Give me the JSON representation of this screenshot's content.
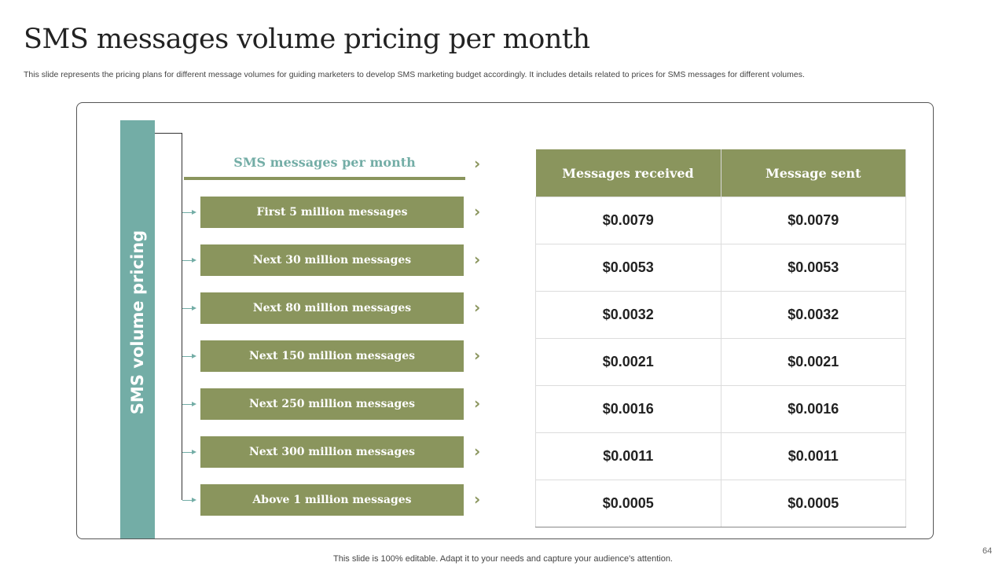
{
  "title": "SMS messages volume pricing per month",
  "subtitle": "This slide represents the pricing plans for different message volumes for guiding marketers to develop SMS  marketing budget accordingly. It includes details related to prices for SMS  messages for different volumes.",
  "side_label": "SMS volume pricing",
  "tiers_header": "SMS messages per month",
  "tiers": [
    "First 5 million messages",
    "Next 30 million messages",
    "Next 80  million messages",
    "Next 150 million messages",
    "Next 250 million messages",
    "Next 300  million messages",
    "Above   1 million messages"
  ],
  "table": {
    "headers": [
      "Messages received",
      "Message sent"
    ],
    "rows": [
      [
        "$0.0079",
        "$0.0079"
      ],
      [
        "$0.0053",
        "$0.0053"
      ],
      [
        "$0.0032",
        "$0.0032"
      ],
      [
        "$0.0021",
        "$0.0021"
      ],
      [
        "$0.0016",
        "$0.0016"
      ],
      [
        "$0.0011",
        "$0.0011"
      ],
      [
        "$0.0005",
        "$0.0005"
      ]
    ]
  },
  "chevron": "›",
  "footer": "This slide is 100% editable. Adapt it to your needs and capture your audience's attention.",
  "page_number": "64",
  "colors": {
    "olive": "#8a955d",
    "teal": "#73ada6"
  }
}
